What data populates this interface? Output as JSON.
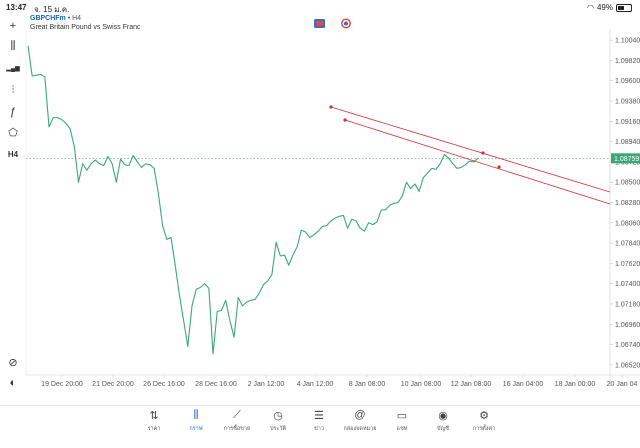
{
  "status": {
    "time": "13:47",
    "date": "จ. 15 ม.ค.",
    "battery": "49%",
    "battery_level": 0.49
  },
  "toolbar": [
    {
      "name": "crosshair-icon",
      "glyph": "+"
    },
    {
      "name": "candlestick-icon",
      "glyph": "⫼"
    },
    {
      "name": "bar-chart-icon",
      "glyph": "▂▄▆"
    },
    {
      "name": "indicators-icon",
      "glyph": "⫶"
    },
    {
      "name": "function-icon",
      "glyph": "ƒ"
    },
    {
      "name": "objects-icon",
      "glyph": "⬠"
    },
    {
      "name": "timeframe-label",
      "glyph": "H4"
    }
  ],
  "symbol": {
    "name": "GBPCHFm",
    "separator": " • ",
    "timeframe": "H4",
    "description": "Great Britain Pound vs Swiss Franc"
  },
  "current_price": "1.08759",
  "price_axis": [
    "1.10040",
    "1.09820",
    "1.09600",
    "1.09380",
    "1.09160",
    "1.08940",
    "1.08720",
    "1.08500",
    "1.08280",
    "1.08060",
    "1.07840",
    "1.07620",
    "1.07400",
    "1.07180",
    "1.06960",
    "1.06740",
    "1.06520"
  ],
  "time_axis": [
    "19 Dec 20:00",
    "21 Dec 20:00",
    "26 Dec 16:00",
    "28 Dec 16:00",
    "2 Jan 12:00",
    "4 Jan 12:00",
    "8 Jan 08:00",
    "10 Jan 08:00",
    "12 Jan 08:00",
    "16 Jan 04:00",
    "18 Jan 00:00",
    "20 Jan 04"
  ],
  "chart_data": {
    "type": "line",
    "color": "#3aa876",
    "ylim": [
      1.0641,
      1.1015
    ],
    "values": [
      1.0998,
      1.0965,
      1.0966,
      1.0967,
      1.0964,
      1.091,
      1.092,
      1.092,
      1.0918,
      1.0914,
      1.0908,
      1.0889,
      1.085,
      1.087,
      1.0863,
      1.087,
      1.0874,
      1.087,
      1.0868,
      1.0878,
      1.087,
      1.085,
      1.0875,
      1.0869,
      1.0868,
      1.0879,
      1.0872,
      1.0866,
      1.087,
      1.0869,
      1.0865,
      1.0838,
      1.0803,
      1.0788,
      1.079,
      1.076,
      1.0728,
      1.07,
      1.0672,
      1.0716,
      1.0734,
      1.0736,
      1.074,
      1.0735,
      1.0664,
      1.071,
      1.0711,
      1.0722,
      1.07,
      1.0682,
      1.0725,
      1.0716,
      1.072,
      1.0722,
      1.0723,
      1.073,
      1.0739,
      1.0743,
      1.075,
      1.0785,
      1.077,
      1.0771,
      1.076,
      1.0771,
      1.078,
      1.0798,
      1.0796,
      1.079,
      1.0793,
      1.0797,
      1.0802,
      1.0803,
      1.0808,
      1.0811,
      1.0813,
      1.0814,
      1.08,
      1.081,
      1.0808,
      1.08,
      1.0797,
      1.0806,
      1.0804,
      1.0807,
      1.082,
      1.082,
      1.0825,
      1.0827,
      1.0828,
      1.0835,
      1.085,
      1.0843,
      1.0848,
      1.084,
      1.0855,
      1.086,
      1.0865,
      1.0864,
      1.087,
      1.088,
      1.0876,
      1.087,
      1.0865,
      1.0866,
      1.0869,
      1.0873,
      1.0872,
      1.0876
    ]
  },
  "channel": {
    "color": "#d32f2f"
  },
  "nav": [
    {
      "name": "nav-quotes",
      "icon": "⇅",
      "label": "ราคา"
    },
    {
      "name": "nav-chart",
      "icon": "⫼",
      "label": "กราฟ",
      "active": true
    },
    {
      "name": "nav-trade",
      "icon": "⟋",
      "label": "การซื้อขาย"
    },
    {
      "name": "nav-history",
      "icon": "◷",
      "label": "ประวัติ"
    },
    {
      "name": "nav-news",
      "icon": "☰",
      "label": "ข่าว"
    },
    {
      "name": "nav-mailbox",
      "icon": "@",
      "label": "กล่องจดหมาย"
    },
    {
      "name": "nav-chat",
      "icon": "▭",
      "label": "แชท"
    },
    {
      "name": "nav-accounts",
      "icon": "◉",
      "label": "บัญชี"
    },
    {
      "name": "nav-settings",
      "icon": "⚙",
      "label": "การตั้งค่า"
    }
  ]
}
